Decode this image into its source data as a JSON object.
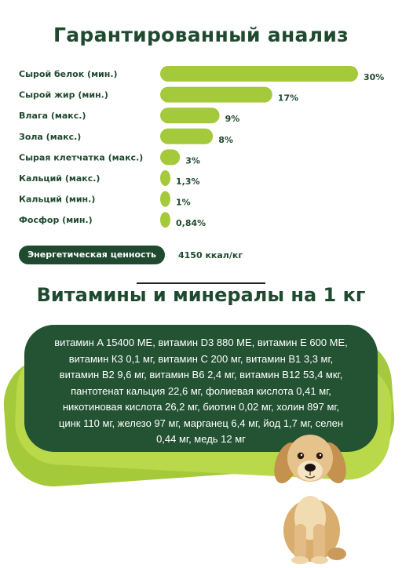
{
  "title": "Гарантированный анализ",
  "chart_data": {
    "type": "bar",
    "orientation": "horizontal",
    "categories": [
      "Сырой белок (мин.)",
      "Сырой жир (мин.)",
      "Влага (макс.)",
      "Зола (макс.)",
      "Сырая клетчатка (макс.)",
      "Кальций (макс.)",
      "Кальций (мин.)",
      "Фосфор (мин.)"
    ],
    "values": [
      30,
      17,
      9,
      8,
      3,
      1.3,
      1,
      0.84
    ],
    "value_labels": [
      "30%",
      "17%",
      "9%",
      "8%",
      "3%",
      "1,3%",
      "1%",
      "0,84%"
    ],
    "unit": "%",
    "xlim": [
      0,
      30
    ],
    "bar_color": "#a4c93a",
    "grid": false
  },
  "energy": {
    "label": "Энергетическая ценность",
    "value": "4150 ккал/кг"
  },
  "vitamins": {
    "title": "Витамины и минералы на 1 кг",
    "lines": [
      "витамин A 15400 МЕ, витамин D3 880 МЕ, витамин E 600 МЕ,",
      "витамин К3 0,1 мг, витамин С 200 мг, витамин В1 3,3 мг,",
      "витамин В2 9,6 мг, витамин В6 2,4 мг, витамин В12 53,4 мкг,",
      "пантотенат кальция 22,6 мг, фолиевая кислота 0,41 мг,",
      "никотиновая кислота 26,2 мг, биотин 0,02 мг, холин 897 мг,",
      "цинк 110 мг, железо 97 мг, марганец 6,4 мг, йод 1,7 мг, селен",
      "0,44 мг, медь 12 мг"
    ]
  },
  "colors": {
    "dark_green": "#1f4a2f",
    "box_green": "#235332",
    "lime": "#a4c93a"
  }
}
